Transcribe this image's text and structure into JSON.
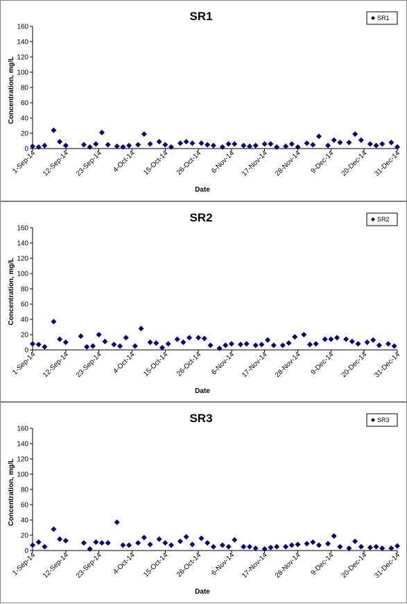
{
  "chart_data": [
    {
      "type": "scatter",
      "title": "SR1",
      "xlabel": "Date",
      "ylabel": "Concentration, mg/L",
      "ylim": [
        0,
        160
      ],
      "yticks": [
        0,
        20,
        40,
        60,
        80,
        100,
        120,
        140,
        160
      ],
      "xlim": [
        "2014-09-01",
        "2014-12-31"
      ],
      "xtick_labels": [
        "1-Sep-14",
        "12-Sep-14",
        "23-Sep-14",
        "4-Oct-14",
        "15-Oct-14",
        "26-Oct-14",
        "6-Nov-14",
        "17-Nov-14",
        "28-Nov-14",
        "9-Dec-14",
        "20-Dec-14",
        "31-Dec-14"
      ],
      "xtick_dates": [
        "2014-09-01",
        "2014-09-12",
        "2014-09-23",
        "2014-10-04",
        "2014-10-15",
        "2014-10-26",
        "2014-11-06",
        "2014-11-17",
        "2014-11-28",
        "2014-12-09",
        "2014-12-20",
        "2014-12-31"
      ],
      "grid": false,
      "legend": "top-right",
      "marker_color": "#000080",
      "series": [
        {
          "name": "SR1",
          "x": [
            "2014-09-01",
            "2014-09-03",
            "2014-09-05",
            "2014-09-08",
            "2014-09-10",
            "2014-09-12",
            "2014-09-18",
            "2014-09-20",
            "2014-09-22",
            "2014-09-24",
            "2014-09-26",
            "2014-09-29",
            "2014-10-01",
            "2014-10-03",
            "2014-10-06",
            "2014-10-08",
            "2014-10-10",
            "2014-10-13",
            "2014-10-15",
            "2014-10-17",
            "2014-10-20",
            "2014-10-22",
            "2014-10-24",
            "2014-10-27",
            "2014-10-29",
            "2014-10-31",
            "2014-11-03",
            "2014-11-05",
            "2014-11-07",
            "2014-11-10",
            "2014-11-12",
            "2014-11-14",
            "2014-11-17",
            "2014-11-19",
            "2014-11-21",
            "2014-11-24",
            "2014-11-26",
            "2014-11-28",
            "2014-12-01",
            "2014-12-03",
            "2014-12-05",
            "2014-12-08",
            "2014-12-10",
            "2014-12-12",
            "2014-12-15",
            "2014-12-17",
            "2014-12-19",
            "2014-12-22",
            "2014-12-24",
            "2014-12-26",
            "2014-12-29",
            "2014-12-31"
          ],
          "y": [
            3,
            2,
            4,
            24,
            9,
            4,
            5,
            2,
            6,
            21,
            5,
            3,
            2,
            4,
            5,
            19,
            6,
            9,
            5,
            2,
            7,
            9,
            7,
            7,
            5,
            4,
            2,
            6,
            6,
            4,
            3,
            4,
            6,
            6,
            2,
            3,
            6,
            2,
            7,
            5,
            16,
            4,
            11,
            8,
            8,
            19,
            11,
            6,
            4,
            6,
            8,
            2
          ]
        }
      ]
    },
    {
      "type": "scatter",
      "title": "SR2",
      "xlabel": "Date",
      "ylabel": "Concentration, mg/L",
      "ylim": [
        0,
        160
      ],
      "yticks": [
        0,
        20,
        40,
        60,
        80,
        100,
        120,
        140,
        160
      ],
      "xlim": [
        "2014-09-01",
        "2014-12-31"
      ],
      "xtick_labels": [
        "1-Sep-14",
        "12-Sep-14",
        "23-Sep-14",
        "4-Oct-14",
        "15-Oct-14",
        "26-Oct-14",
        "6-Nov-14",
        "17-Nov-14",
        "28-Nov-14",
        "9-Dec-14",
        "20-Dec-14",
        "31-Dec-14"
      ],
      "xtick_dates": [
        "2014-09-01",
        "2014-09-12",
        "2014-09-23",
        "2014-10-04",
        "2014-10-15",
        "2014-10-26",
        "2014-11-06",
        "2014-11-17",
        "2014-11-28",
        "2014-12-09",
        "2014-12-20",
        "2014-12-31"
      ],
      "grid": false,
      "legend": "top-right",
      "marker_color": "#000080",
      "series": [
        {
          "name": "SR2",
          "x": [
            "2014-09-01",
            "2014-09-03",
            "2014-09-05",
            "2014-09-08",
            "2014-09-10",
            "2014-09-12",
            "2014-09-17",
            "2014-09-19",
            "2014-09-21",
            "2014-09-23",
            "2014-09-25",
            "2014-09-28",
            "2014-09-30",
            "2014-10-02",
            "2014-10-05",
            "2014-10-07",
            "2014-10-10",
            "2014-10-12",
            "2014-10-14",
            "2014-10-16",
            "2014-10-19",
            "2014-10-21",
            "2014-10-23",
            "2014-10-26",
            "2014-10-28",
            "2014-10-30",
            "2014-11-02",
            "2014-11-04",
            "2014-11-06",
            "2014-11-09",
            "2014-11-11",
            "2014-11-14",
            "2014-11-16",
            "2014-11-18",
            "2014-11-20",
            "2014-11-23",
            "2014-11-25",
            "2014-11-27",
            "2014-11-30",
            "2014-12-02",
            "2014-12-04",
            "2014-12-07",
            "2014-12-09",
            "2014-12-11",
            "2014-12-14",
            "2014-12-16",
            "2014-12-18",
            "2014-12-21",
            "2014-12-23",
            "2014-12-25",
            "2014-12-28",
            "2014-12-30"
          ],
          "y": [
            8,
            7,
            4,
            37,
            14,
            10,
            18,
            4,
            5,
            20,
            11,
            7,
            5,
            16,
            5,
            28,
            10,
            9,
            3,
            8,
            14,
            10,
            16,
            16,
            15,
            6,
            2,
            6,
            8,
            7,
            8,
            6,
            7,
            13,
            6,
            6,
            9,
            17,
            20,
            7,
            8,
            14,
            14,
            16,
            14,
            11,
            8,
            10,
            13,
            6,
            8,
            5
          ]
        }
      ]
    },
    {
      "type": "scatter",
      "title": "SR3",
      "xlabel": "Date",
      "ylabel": "Concentration, mg/L",
      "ylim": [
        0,
        160
      ],
      "yticks": [
        0,
        20,
        40,
        60,
        80,
        100,
        120,
        140,
        160
      ],
      "xlim": [
        "2014-09-01",
        "2014-12-31"
      ],
      "xtick_labels": [
        "1-Sep-14",
        "12-Sep-14",
        "23-Sep-14",
        "4-Oct-14",
        "15-Oct-14",
        "26-Oct-14",
        "6-Nov-14",
        "17-Nov-14",
        "28-Nov-14",
        "9-Dec-14",
        "20-Dec-14",
        "31-Dec-14"
      ],
      "xtick_dates": [
        "2014-09-01",
        "2014-09-12",
        "2014-09-23",
        "2014-10-04",
        "2014-10-15",
        "2014-10-26",
        "2014-11-06",
        "2014-11-17",
        "2014-11-28",
        "2014-12-09",
        "2014-12-20",
        "2014-12-31"
      ],
      "grid": false,
      "legend": "top-right",
      "marker_color": "#000080",
      "series": [
        {
          "name": "SR3",
          "x": [
            "2014-09-01",
            "2014-09-03",
            "2014-09-05",
            "2014-09-08",
            "2014-09-10",
            "2014-09-12",
            "2014-09-18",
            "2014-09-20",
            "2014-09-22",
            "2014-09-24",
            "2014-09-26",
            "2014-09-29",
            "2014-10-01",
            "2014-10-03",
            "2014-10-06",
            "2014-10-08",
            "2014-10-10",
            "2014-10-13",
            "2014-10-15",
            "2014-10-17",
            "2014-10-20",
            "2014-10-22",
            "2014-10-24",
            "2014-10-27",
            "2014-10-29",
            "2014-10-31",
            "2014-11-03",
            "2014-11-05",
            "2014-11-07",
            "2014-11-10",
            "2014-11-12",
            "2014-11-14",
            "2014-11-17",
            "2014-11-19",
            "2014-11-21",
            "2014-11-24",
            "2014-11-26",
            "2014-11-28",
            "2014-12-01",
            "2014-12-03",
            "2014-12-05",
            "2014-12-08",
            "2014-12-10",
            "2014-12-12",
            "2014-12-15",
            "2014-12-17",
            "2014-12-19",
            "2014-12-22",
            "2014-12-24",
            "2014-12-26",
            "2014-12-29",
            "2014-12-31"
          ],
          "y": [
            7,
            11,
            5,
            28,
            15,
            13,
            10,
            2,
            11,
            10,
            10,
            37,
            7,
            7,
            10,
            17,
            8,
            15,
            10,
            7,
            12,
            18,
            8,
            16,
            10,
            5,
            7,
            5,
            14,
            5,
            5,
            3,
            2,
            4,
            5,
            5,
            7,
            8,
            9,
            11,
            7,
            9,
            19,
            5,
            3,
            12,
            5,
            4,
            5,
            3,
            3,
            6
          ]
        }
      ]
    }
  ]
}
